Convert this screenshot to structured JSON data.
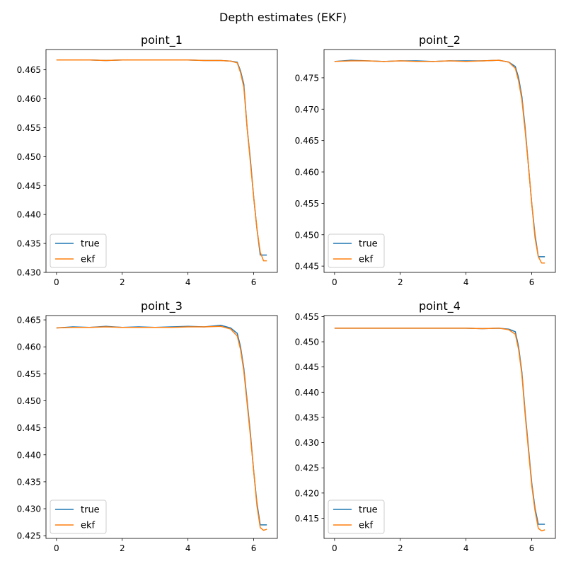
{
  "figure": {
    "suptitle": "Depth estimates (EKF)"
  },
  "colors": {
    "true": "#1f77b4",
    "ekf": "#ff7f0e"
  },
  "chart_data": [
    {
      "type": "line",
      "title": "point_1",
      "xlim": [
        -0.32,
        6.72
      ],
      "ylim": [
        0.43,
        0.4685
      ],
      "xticks": [
        0,
        2,
        4,
        6
      ],
      "yticks": [
        0.43,
        0.435,
        0.44,
        0.445,
        0.45,
        0.455,
        0.46,
        0.465
      ],
      "legend": "lower-left",
      "series": [
        {
          "name": "true",
          "x": [
            0,
            0.5,
            1.0,
            1.5,
            2.0,
            2.5,
            3.0,
            3.5,
            4.0,
            4.5,
            5.0,
            5.3,
            5.5,
            5.6,
            5.7,
            5.8,
            5.9,
            6.0,
            6.1,
            6.2,
            6.3,
            6.4
          ],
          "y": [
            0.4667,
            0.4667,
            0.4667,
            0.4666,
            0.4667,
            0.4667,
            0.4667,
            0.4667,
            0.4667,
            0.4666,
            0.4666,
            0.4665,
            0.4663,
            0.4648,
            0.4625,
            0.455,
            0.4495,
            0.443,
            0.4375,
            0.433,
            0.433,
            0.433
          ]
        },
        {
          "name": "ekf",
          "x": [
            0,
            0.5,
            1.0,
            1.5,
            2.0,
            2.5,
            3.0,
            3.5,
            4.0,
            4.5,
            5.0,
            5.3,
            5.5,
            5.6,
            5.7,
            5.8,
            5.9,
            6.0,
            6.1,
            6.2,
            6.3,
            6.4
          ],
          "y": [
            0.4667,
            0.4667,
            0.4667,
            0.4666,
            0.4667,
            0.4667,
            0.4667,
            0.4667,
            0.4667,
            0.4666,
            0.4666,
            0.4665,
            0.4662,
            0.4645,
            0.462,
            0.455,
            0.449,
            0.443,
            0.4375,
            0.4335,
            0.432,
            0.432
          ]
        }
      ]
    },
    {
      "type": "line",
      "title": "point_2",
      "xlim": [
        -0.32,
        6.72
      ],
      "ylim": [
        0.444,
        0.4795
      ],
      "xticks": [
        0,
        2,
        4,
        6
      ],
      "yticks": [
        0.445,
        0.45,
        0.455,
        0.46,
        0.465,
        0.47,
        0.475
      ],
      "legend": "lower-left",
      "series": [
        {
          "name": "true",
          "x": [
            0,
            0.5,
            1.0,
            1.5,
            2.0,
            2.5,
            3.0,
            3.5,
            4.0,
            4.5,
            5.0,
            5.3,
            5.5,
            5.6,
            5.7,
            5.8,
            5.9,
            6.0,
            6.1,
            6.2,
            6.3,
            6.4
          ],
          "y": [
            0.4776,
            0.4778,
            0.4777,
            0.4776,
            0.4777,
            0.4777,
            0.4776,
            0.4777,
            0.4777,
            0.4777,
            0.4778,
            0.4775,
            0.4768,
            0.475,
            0.472,
            0.467,
            0.461,
            0.455,
            0.45,
            0.4465,
            0.4465,
            0.4465
          ]
        },
        {
          "name": "ekf",
          "x": [
            0,
            0.5,
            1.0,
            1.5,
            2.0,
            2.5,
            3.0,
            3.5,
            4.0,
            4.5,
            5.0,
            5.3,
            5.5,
            5.6,
            5.7,
            5.8,
            5.9,
            6.0,
            6.1,
            6.2,
            6.3,
            6.4
          ],
          "y": [
            0.4776,
            0.4777,
            0.4777,
            0.4776,
            0.4777,
            0.4776,
            0.4776,
            0.4777,
            0.4776,
            0.4777,
            0.4778,
            0.4775,
            0.4765,
            0.4745,
            0.4715,
            0.4665,
            0.461,
            0.455,
            0.4495,
            0.4465,
            0.4455,
            0.4455
          ]
        }
      ]
    },
    {
      "type": "line",
      "title": "point_3",
      "xlim": [
        -0.32,
        6.72
      ],
      "ylim": [
        0.4245,
        0.4658
      ],
      "xticks": [
        0,
        2,
        4,
        6
      ],
      "yticks": [
        0.425,
        0.43,
        0.435,
        0.44,
        0.445,
        0.45,
        0.455,
        0.46,
        0.465
      ],
      "legend": "lower-left",
      "series": [
        {
          "name": "true",
          "x": [
            0,
            0.5,
            1.0,
            1.5,
            2.0,
            2.5,
            3.0,
            3.5,
            4.0,
            4.5,
            5.0,
            5.3,
            5.5,
            5.6,
            5.7,
            5.8,
            5.9,
            6.0,
            6.1,
            6.2,
            6.3,
            6.4
          ],
          "y": [
            0.4635,
            0.4637,
            0.4636,
            0.4638,
            0.4636,
            0.4637,
            0.4636,
            0.4637,
            0.4638,
            0.4637,
            0.464,
            0.4635,
            0.4625,
            0.46,
            0.456,
            0.45,
            0.444,
            0.437,
            0.431,
            0.427,
            0.427,
            0.427
          ]
        },
        {
          "name": "ekf",
          "x": [
            0,
            0.5,
            1.0,
            1.5,
            2.0,
            2.5,
            3.0,
            3.5,
            4.0,
            4.5,
            5.0,
            5.3,
            5.5,
            5.6,
            5.7,
            5.8,
            5.9,
            6.0,
            6.1,
            6.2,
            6.3,
            6.4
          ],
          "y": [
            0.4635,
            0.4636,
            0.4636,
            0.4637,
            0.4636,
            0.4636,
            0.4636,
            0.4636,
            0.4637,
            0.4637,
            0.4638,
            0.4633,
            0.462,
            0.4595,
            0.4555,
            0.4495,
            0.4435,
            0.437,
            0.4305,
            0.4265,
            0.426,
            0.4262
          ]
        }
      ]
    },
    {
      "type": "line",
      "title": "point_4",
      "xlim": [
        -0.32,
        6.72
      ],
      "ylim": [
        0.411,
        0.4552
      ],
      "xticks": [
        0,
        2,
        4,
        6
      ],
      "yticks": [
        0.415,
        0.42,
        0.425,
        0.43,
        0.435,
        0.44,
        0.445,
        0.45,
        0.455
      ],
      "legend": "lower-left",
      "series": [
        {
          "name": "true",
          "x": [
            0,
            0.5,
            1.0,
            1.5,
            2.0,
            2.5,
            3.0,
            3.5,
            4.0,
            4.5,
            5.0,
            5.3,
            5.5,
            5.6,
            5.7,
            5.8,
            5.9,
            6.0,
            6.1,
            6.2,
            6.3,
            6.4
          ],
          "y": [
            0.4527,
            0.4527,
            0.4527,
            0.4527,
            0.4527,
            0.4527,
            0.4527,
            0.4527,
            0.4527,
            0.4526,
            0.4527,
            0.4525,
            0.452,
            0.449,
            0.444,
            0.436,
            0.429,
            0.422,
            0.417,
            0.4138,
            0.4138,
            0.4138
          ]
        },
        {
          "name": "ekf",
          "x": [
            0,
            0.5,
            1.0,
            1.5,
            2.0,
            2.5,
            3.0,
            3.5,
            4.0,
            4.5,
            5.0,
            5.3,
            5.5,
            5.6,
            5.7,
            5.8,
            5.9,
            6.0,
            6.1,
            6.2,
            6.3,
            6.4
          ],
          "y": [
            0.4527,
            0.4527,
            0.4527,
            0.4527,
            0.4527,
            0.4527,
            0.4527,
            0.4527,
            0.4527,
            0.4526,
            0.4527,
            0.4524,
            0.4515,
            0.4485,
            0.4435,
            0.4355,
            0.4285,
            0.4215,
            0.4165,
            0.413,
            0.4125,
            0.4127
          ]
        }
      ]
    }
  ]
}
